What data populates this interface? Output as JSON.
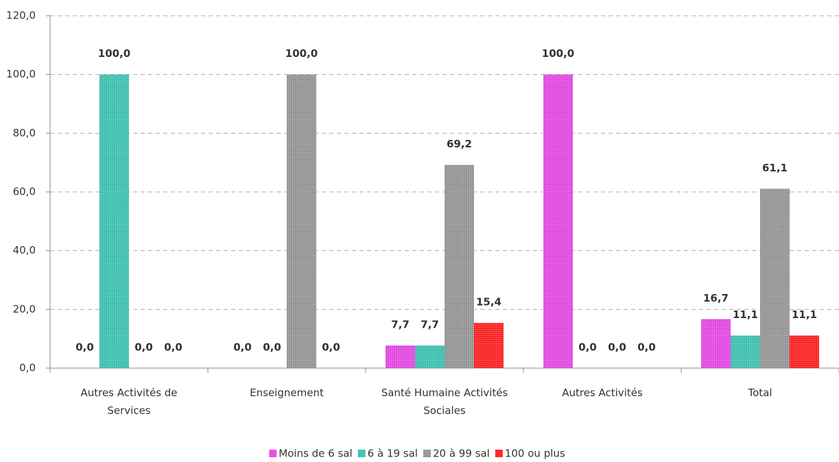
{
  "chart_data": {
    "type": "bar",
    "categories": [
      "Autres Activités de Services",
      "Enseignement",
      "Santé Humaine Activités Sociales",
      "Autres Activités",
      "Total"
    ],
    "series": [
      {
        "name": "Moins de 6 sal",
        "color": "#e650e6",
        "label_color": "#c284f0",
        "values": [
          0,
          0,
          7.7,
          100,
          16.7
        ],
        "value_labels": [
          "0,0",
          "0,0",
          "7,7",
          "100,0",
          "16,7"
        ]
      },
      {
        "name": "6 à 19 sal",
        "color": "#45c4b4",
        "label_color": "#2a8f5c",
        "values": [
          100,
          0,
          7.7,
          0,
          11.1
        ],
        "value_labels": [
          "100,0",
          "0,0",
          "7,7",
          "0,0",
          "11,1"
        ]
      },
      {
        "name": "20 à 99 sal",
        "color": "#9a9a9a",
        "label_color": "#8a8a8a",
        "values": [
          0,
          100,
          69.2,
          0,
          61.1
        ],
        "value_labels": [
          "0,0",
          "100,0",
          "69,2",
          "0,0",
          "61,1"
        ]
      },
      {
        "name": "100 ou plus",
        "color": "#ff2a2a",
        "label_color": "#e60000",
        "values": [
          0,
          0,
          15.4,
          0,
          11.1
        ],
        "value_labels": [
          "0,0",
          "0,0",
          "15,4",
          "0,0",
          "11,1"
        ]
      }
    ],
    "ylim": [
      0,
      120
    ],
    "yticks": [
      {
        "value": 0,
        "label": "0,0"
      },
      {
        "value": 20,
        "label": "20,0"
      },
      {
        "value": 40,
        "label": "40,0"
      },
      {
        "value": 60,
        "label": "60,0"
      },
      {
        "value": 80,
        "label": "80,0"
      },
      {
        "value": 100,
        "label": "100,0"
      },
      {
        "value": 120,
        "label": "120,0"
      }
    ],
    "grid": true,
    "legend": "bottom"
  }
}
